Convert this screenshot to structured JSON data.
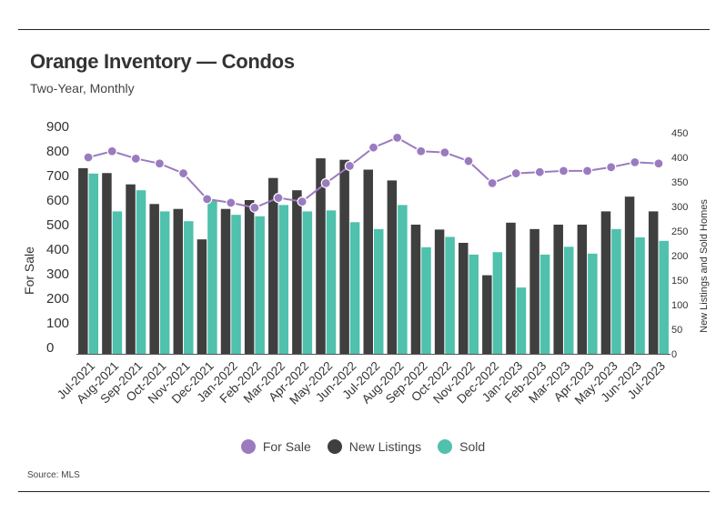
{
  "header": {
    "title": "Orange Inventory — Condos",
    "subtitle": "Two-Year, Monthly"
  },
  "source": "Source: MLS",
  "colors": {
    "for_sale": "#9b7bbf",
    "new_listings": "#3f3f3f",
    "sold": "#4fc1ad"
  },
  "chart_data": {
    "type": "bar",
    "categories": [
      "Jul-2021",
      "Aug-2021",
      "Sep-2021",
      "Oct-2021",
      "Nov-2021",
      "Dec-2021",
      "Jan-2022",
      "Feb-2022",
      "Mar-2022",
      "Apr-2022",
      "May-2022",
      "Jun-2022",
      "Jul-2022",
      "Aug-2022",
      "Sep-2022",
      "Oct-2022",
      "Nov-2022",
      "Dec-2022",
      "Jan-2023",
      "Feb-2023",
      "Mar-2023",
      "Apr-2023",
      "May-2023",
      "Jun-2023",
      "Jul-2023"
    ],
    "ylabel_left": "For Sale",
    "ylabel_right": "New Listings and Sold Homes",
    "y_left": {
      "min": 0,
      "max": 900,
      "ticks": [
        "0",
        "100",
        "200",
        "300",
        "400",
        "500",
        "600",
        "700",
        "800",
        "900"
      ]
    },
    "y_right": {
      "min": 0,
      "max": 450,
      "ticks": [
        "0",
        "50",
        "100",
        "150",
        "200",
        "250",
        "300",
        "350",
        "400",
        "450"
      ]
    },
    "legend": [
      "For Sale",
      "New Listings",
      "Sold"
    ],
    "legend_position": "bottom",
    "grid": false,
    "series": [
      {
        "name": "For Sale",
        "type": "line",
        "axis": "left",
        "values": [
          800,
          825,
          795,
          775,
          735,
          630,
          615,
          595,
          635,
          620,
          695,
          765,
          840,
          880,
          825,
          820,
          785,
          695,
          735,
          740,
          745,
          745,
          760,
          780,
          775
        ]
      },
      {
        "name": "New Listings",
        "type": "bar",
        "axis": "right",
        "values": [
          378,
          368,
          345,
          305,
          295,
          233,
          295,
          313,
          358,
          333,
          398,
          395,
          375,
          353,
          263,
          253,
          226,
          160,
          267,
          254,
          263,
          263,
          290,
          320,
          290
        ]
      },
      {
        "name": "Sold",
        "type": "bar",
        "axis": "right",
        "values": [
          367,
          290,
          333,
          290,
          270,
          313,
          283,
          280,
          303,
          290,
          292,
          268,
          254,
          303,
          217,
          238,
          202,
          207,
          135,
          202,
          218,
          204,
          254,
          237,
          230
        ]
      }
    ]
  }
}
